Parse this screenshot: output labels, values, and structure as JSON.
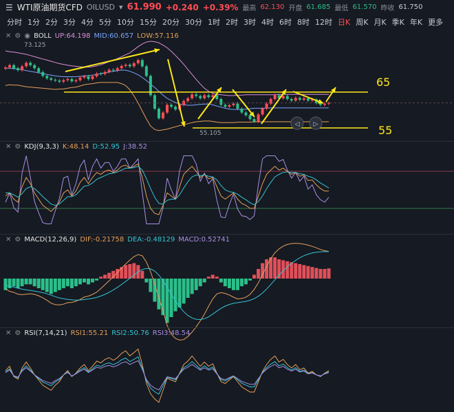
{
  "header": {
    "symbol": "WTI原油期货CFD",
    "code": "OILUSD",
    "price": "61.990",
    "change": "+0.240",
    "change_pct": "+0.39%",
    "high_label": "最高",
    "high": "62.130",
    "open_label": "开盘",
    "open": "61.685",
    "low_label": "最低",
    "low": "61.570",
    "prev_label": "昨收",
    "prev": "61.750"
  },
  "timeframes": [
    "分时",
    "1分",
    "2分",
    "3分",
    "4分",
    "5分",
    "10分",
    "15分",
    "20分",
    "30分",
    "1时",
    "2时",
    "3时",
    "4时",
    "6时",
    "8时",
    "12时",
    "日K",
    "周K",
    "月K",
    "季K",
    "年K",
    "更多"
  ],
  "active_timeframe": "日K",
  "panels": {
    "boll": {
      "name": "BOLL",
      "up_label": "UP:64.198",
      "mid_label": "MID:60.657",
      "low_label": "LOW:57.116",
      "hi_mark": "73.125",
      "lo_mark": "55.105",
      "level_65": "65",
      "level_55": "55"
    },
    "kdj": {
      "name": "KDJ(9,3,3)",
      "k": "K:48.14",
      "d": "D:52.95",
      "j": "J:38.52"
    },
    "macd": {
      "name": "MACD(12,26,9)",
      "dif": "DIF:-0.21758",
      "dea": "DEA:-0.48129",
      "macd": "MACD:0.52741"
    },
    "rsi": {
      "name": "RSI(7,14,21)",
      "r1": "RSI1:55.21",
      "r2": "RSI2:50.76",
      "r3": "RSI3:48.54"
    }
  },
  "colors": {
    "up": "#ff4d55",
    "down": "#2bbf8a",
    "yellow": "#ffe81a",
    "boll_up": "#d98fd9",
    "boll_mid": "#7aa6ff",
    "boll_low": "#e6a15a"
  },
  "chart_data": {
    "type": "line",
    "x": [
      1,
      2,
      3,
      4,
      5,
      6,
      7,
      8,
      9,
      10,
      11,
      12,
      13,
      14,
      15,
      16,
      17,
      18,
      19,
      20,
      21,
      22,
      23,
      24,
      25,
      26,
      27,
      28,
      29,
      30,
      31,
      32,
      33,
      34,
      35,
      36,
      37,
      38,
      39,
      40,
      41,
      42,
      43,
      44,
      45,
      46,
      47,
      48,
      49,
      50,
      51,
      52,
      53,
      54,
      55,
      56,
      57,
      58,
      59,
      60,
      61,
      62,
      63,
      64,
      65,
      66,
      67,
      68,
      69,
      70,
      71,
      72,
      73,
      74,
      75,
      76,
      77,
      78,
      79
    ],
    "close": [
      71.2,
      71.8,
      71.0,
      70.5,
      71.5,
      72.4,
      71.8,
      71.0,
      70.0,
      69.0,
      68.4,
      68.0,
      67.8,
      67.5,
      67.9,
      68.2,
      67.6,
      67.9,
      68.6,
      68.9,
      68.2,
      68.9,
      69.6,
      69.5,
      70.0,
      70.6,
      70.4,
      71.0,
      71.6,
      71.9,
      71.5,
      72.3,
      73.1,
      71.5,
      69.0,
      64.0,
      60.5,
      58.0,
      59.5,
      61.5,
      61.0,
      60.3,
      61.5,
      62.5,
      63.2,
      64.2,
      63.8,
      63.2,
      64.0,
      63.5,
      64.0,
      63.0,
      61.5,
      61.0,
      61.4,
      61.8,
      60.5,
      59.5,
      58.8,
      57.8,
      57.2,
      59.0,
      60.5,
      61.8,
      63.0,
      64.0,
      63.2,
      63.8,
      63.0,
      62.6,
      63.3,
      62.8,
      63.2,
      62.6,
      62.9,
      62.0,
      61.5,
      61.8,
      62.0
    ],
    "boll_up": [
      75.5,
      75.3,
      75.2,
      75.0,
      74.8,
      74.6,
      74.3,
      74.0,
      73.7,
      73.4,
      73.1,
      72.8,
      72.5,
      72.2,
      72.0,
      71.8,
      71.6,
      71.5,
      71.4,
      71.3,
      71.3,
      71.4,
      71.6,
      71.9,
      72.3,
      72.7,
      73.1,
      73.5,
      74.0,
      74.5,
      75.0,
      75.8,
      76.6,
      77.3,
      77.8,
      78.0,
      77.9,
      77.6,
      77.0,
      76.3,
      75.4,
      74.3,
      73.2,
      72.0,
      70.7,
      69.4,
      68.1,
      66.9,
      65.8,
      65.0,
      64.5,
      64.2,
      64.1,
      64.0,
      63.9,
      63.9,
      64.0,
      64.0,
      64.1,
      64.1,
      64.1,
      64.1,
      64.1,
      64.1,
      64.1,
      64.1,
      64.2,
      64.2,
      64.2,
      64.2,
      64.2,
      64.2,
      64.2,
      64.2,
      64.2,
      64.2,
      64.2,
      64.2,
      64.2
    ],
    "boll_mid": [
      71.0,
      71.0,
      70.9,
      70.8,
      70.6,
      70.4,
      70.2,
      70.0,
      69.8,
      69.6,
      69.4,
      69.2,
      69.0,
      68.9,
      68.8,
      68.8,
      68.8,
      68.8,
      68.9,
      69.0,
      69.1,
      69.2,
      69.4,
      69.6,
      69.8,
      70.0,
      70.2,
      70.4,
      70.5,
      70.5,
      70.2,
      69.8,
      69.3,
      68.6,
      67.8,
      66.9,
      66.0,
      65.0,
      64.0,
      63.2,
      62.6,
      62.1,
      61.7,
      61.5,
      61.4,
      61.4,
      61.5,
      61.6,
      61.7,
      61.7,
      61.5,
      61.2,
      60.9,
      60.6,
      60.4,
      60.3,
      60.3,
      60.3,
      60.4,
      60.5,
      60.6,
      60.6,
      60.6,
      60.6,
      60.7,
      60.7,
      60.7,
      60.7,
      60.7,
      60.7,
      60.7,
      60.7,
      60.7,
      60.7,
      60.7,
      60.7,
      60.7,
      60.7,
      60.7
    ],
    "boll_low": [
      66.5,
      66.7,
      66.6,
      66.6,
      66.4,
      66.2,
      66.1,
      66.0,
      65.9,
      65.8,
      65.7,
      65.6,
      65.5,
      65.6,
      65.6,
      65.8,
      66.0,
      66.1,
      66.4,
      66.7,
      66.9,
      67.0,
      67.2,
      67.3,
      67.3,
      67.3,
      67.3,
      67.3,
      67.0,
      66.5,
      65.4,
      63.8,
      62.0,
      59.9,
      57.8,
      56.0,
      55.1,
      54.8,
      55.0,
      55.2,
      55.5,
      55.8,
      56.1,
      56.3,
      56.6,
      56.9,
      57.1,
      57.2,
      57.3,
      57.3,
      57.2,
      57.0,
      56.9,
      56.9,
      56.9,
      56.9,
      57.0,
      57.0,
      57.0,
      57.0,
      57.1,
      57.1,
      57.1,
      57.1,
      57.1,
      57.1,
      57.1,
      57.1,
      57.1,
      57.1,
      57.1,
      57.1,
      57.1,
      57.1,
      57.1,
      57.1,
      57.1,
      57.1,
      57.1
    ],
    "macd_hist": [
      -0.6,
      -0.5,
      -0.4,
      -0.5,
      -0.4,
      -0.3,
      -0.3,
      -0.4,
      -0.5,
      -0.6,
      -0.7,
      -0.8,
      -0.7,
      -0.6,
      -0.5,
      -0.4,
      -0.5,
      -0.4,
      -0.3,
      -0.2,
      -0.3,
      -0.2,
      -0.1,
      0.1,
      0.2,
      0.3,
      0.4,
      0.5,
      0.6,
      0.7,
      0.75,
      0.8,
      0.7,
      0.4,
      -0.2,
      -0.7,
      -1.2,
      -1.6,
      -1.9,
      -2.3,
      -2.0,
      -1.7,
      -1.5,
      -1.3,
      -1.0,
      -0.8,
      -0.6,
      -0.4,
      -0.2,
      0.1,
      0.2,
      0.1,
      -0.2,
      -0.4,
      -0.5,
      -0.6,
      -0.6,
      -0.4,
      -0.3,
      -0.1,
      0.2,
      0.5,
      0.8,
      1.0,
      1.1,
      1.1,
      1.0,
      0.95,
      0.9,
      0.85,
      0.8,
      0.75,
      0.7,
      0.65,
      0.6,
      0.55,
      0.5,
      0.5,
      0.53
    ],
    "kdj_k": [
      40,
      45,
      35,
      30,
      55,
      70,
      60,
      45,
      35,
      25,
      20,
      15,
      22,
      30,
      45,
      50,
      40,
      48,
      62,
      70,
      60,
      70,
      78,
      75,
      80,
      82,
      78,
      82,
      88,
      90,
      85,
      88,
      92,
      70,
      40,
      20,
      12,
      10,
      25,
      45,
      40,
      35,
      55,
      75,
      82,
      88,
      80,
      70,
      75,
      68,
      70,
      55,
      40,
      35,
      40,
      45,
      35,
      28,
      25,
      20,
      20,
      40,
      60,
      75,
      82,
      88,
      82,
      85,
      80,
      75,
      78,
      72,
      74,
      65,
      66,
      58,
      52,
      48,
      48
    ],
    "kdj_d": [
      45,
      45,
      42,
      38,
      44,
      52,
      55,
      52,
      46,
      39,
      33,
      27,
      25,
      27,
      33,
      39,
      39,
      42,
      49,
      56,
      57,
      61,
      67,
      70,
      73,
      76,
      77,
      79,
      82,
      85,
      85,
      86,
      88,
      82,
      68,
      52,
      38,
      28,
      27,
      33,
      35,
      35,
      42,
      53,
      63,
      71,
      74,
      73,
      74,
      72,
      71,
      66,
      57,
      50,
      47,
      46,
      43,
      38,
      34,
      29,
      26,
      31,
      40,
      52,
      62,
      71,
      75,
      78,
      79,
      78,
      78,
      76,
      75,
      72,
      70,
      66,
      61,
      57,
      53
    ],
    "rsi1": [
      55,
      60,
      48,
      45,
      58,
      65,
      58,
      50,
      44,
      38,
      35,
      32,
      38,
      42,
      50,
      55,
      48,
      52,
      58,
      62,
      55,
      60,
      66,
      64,
      68,
      70,
      67,
      70,
      75,
      78,
      72,
      76,
      80,
      62,
      40,
      28,
      22,
      18,
      32,
      46,
      44,
      42,
      52,
      62,
      66,
      72,
      66,
      60,
      65,
      60,
      63,
      52,
      42,
      40,
      44,
      48,
      42,
      36,
      33,
      30,
      30,
      42,
      54,
      62,
      68,
      72,
      65,
      68,
      62,
      58,
      62,
      56,
      58,
      52,
      54,
      50,
      48,
      52,
      55
    ]
  }
}
